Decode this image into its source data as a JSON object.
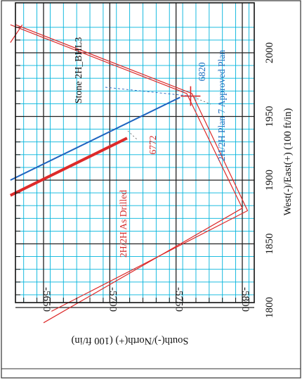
{
  "chart_data": {
    "type": "line",
    "orientation_note": "rotated",
    "xlabel": "West(-)/East(+) (100 ft/in)",
    "ylabel": "South(-)/North(+) (100 ft/in)",
    "x_ticks": [
      1800,
      1850,
      1900,
      1950,
      2000
    ],
    "y_ticks": [
      -5650,
      -5700,
      -5750,
      -5800
    ],
    "x_tick_labels": [
      "1800",
      "1850",
      "1900",
      "1950",
      "2000"
    ],
    "y_tick_labels": [
      "-5650",
      "-5700",
      "-5750",
      "-5800"
    ],
    "xlim": [
      1790,
      2022
    ],
    "ylim": [
      -5808,
      -5625
    ],
    "grid": true,
    "colors": {
      "major_grid": "#222222",
      "minor_grid": "#00b4dc",
      "red": "#dd2a2a",
      "blue": "#1e64c0"
    },
    "series": [
      {
        "name": "2H/2H As Drilled",
        "color": "#dd2a2a",
        "width": 4,
        "x": [
          1888,
          1933
        ],
        "y": [
          -5625,
          -5713
        ]
      },
      {
        "name": "2H/2H Plan 7 Approved Plan",
        "color": "#1e64c0",
        "width": 2,
        "x": [
          1900,
          1965
        ],
        "y": [
          -5625,
          -5753
        ]
      },
      {
        "name": "",
        "color": "#dd2a2a",
        "width": 1.2,
        "x": [
          1788,
          1878,
          1968,
          2022
        ],
        "y": [
          -5650,
          -5800,
          -5758,
          -5625
        ]
      },
      {
        "name": "",
        "color": "#dd2a2a",
        "width": 1.2,
        "x": [
          1797,
          1876,
          1968,
          2022
        ],
        "y": [
          -5656,
          -5804,
          -5762,
          -5629
        ]
      },
      {
        "name": "",
        "color": "#dd2a2a",
        "width": 1.2,
        "x": [
          2008,
          2022
        ],
        "y": [
          -5625,
          -5634
        ]
      }
    ],
    "annotations": [
      {
        "text": "2H/2H As Drilled",
        "color": "#dd2a2a",
        "x": 1863,
        "y": -5713
      },
      {
        "text": "6772",
        "color": "#dd2a2a",
        "x": 1909,
        "y": -5731
      },
      {
        "text": "2H/2H Plan 7 Approved Plan",
        "color": "#1e64c0",
        "x": 1962,
        "y": -5770
      },
      {
        "text": "6820",
        "color": "#1e64c0",
        "x": 1990,
        "y": -5768
      },
      {
        "text": "Stone 2H_BHL3",
        "color": "#111111",
        "x": 1962,
        "y": -5665
      }
    ],
    "target_marker": {
      "x": 1966,
      "y": -5761,
      "color": "#dd2a2a"
    }
  }
}
